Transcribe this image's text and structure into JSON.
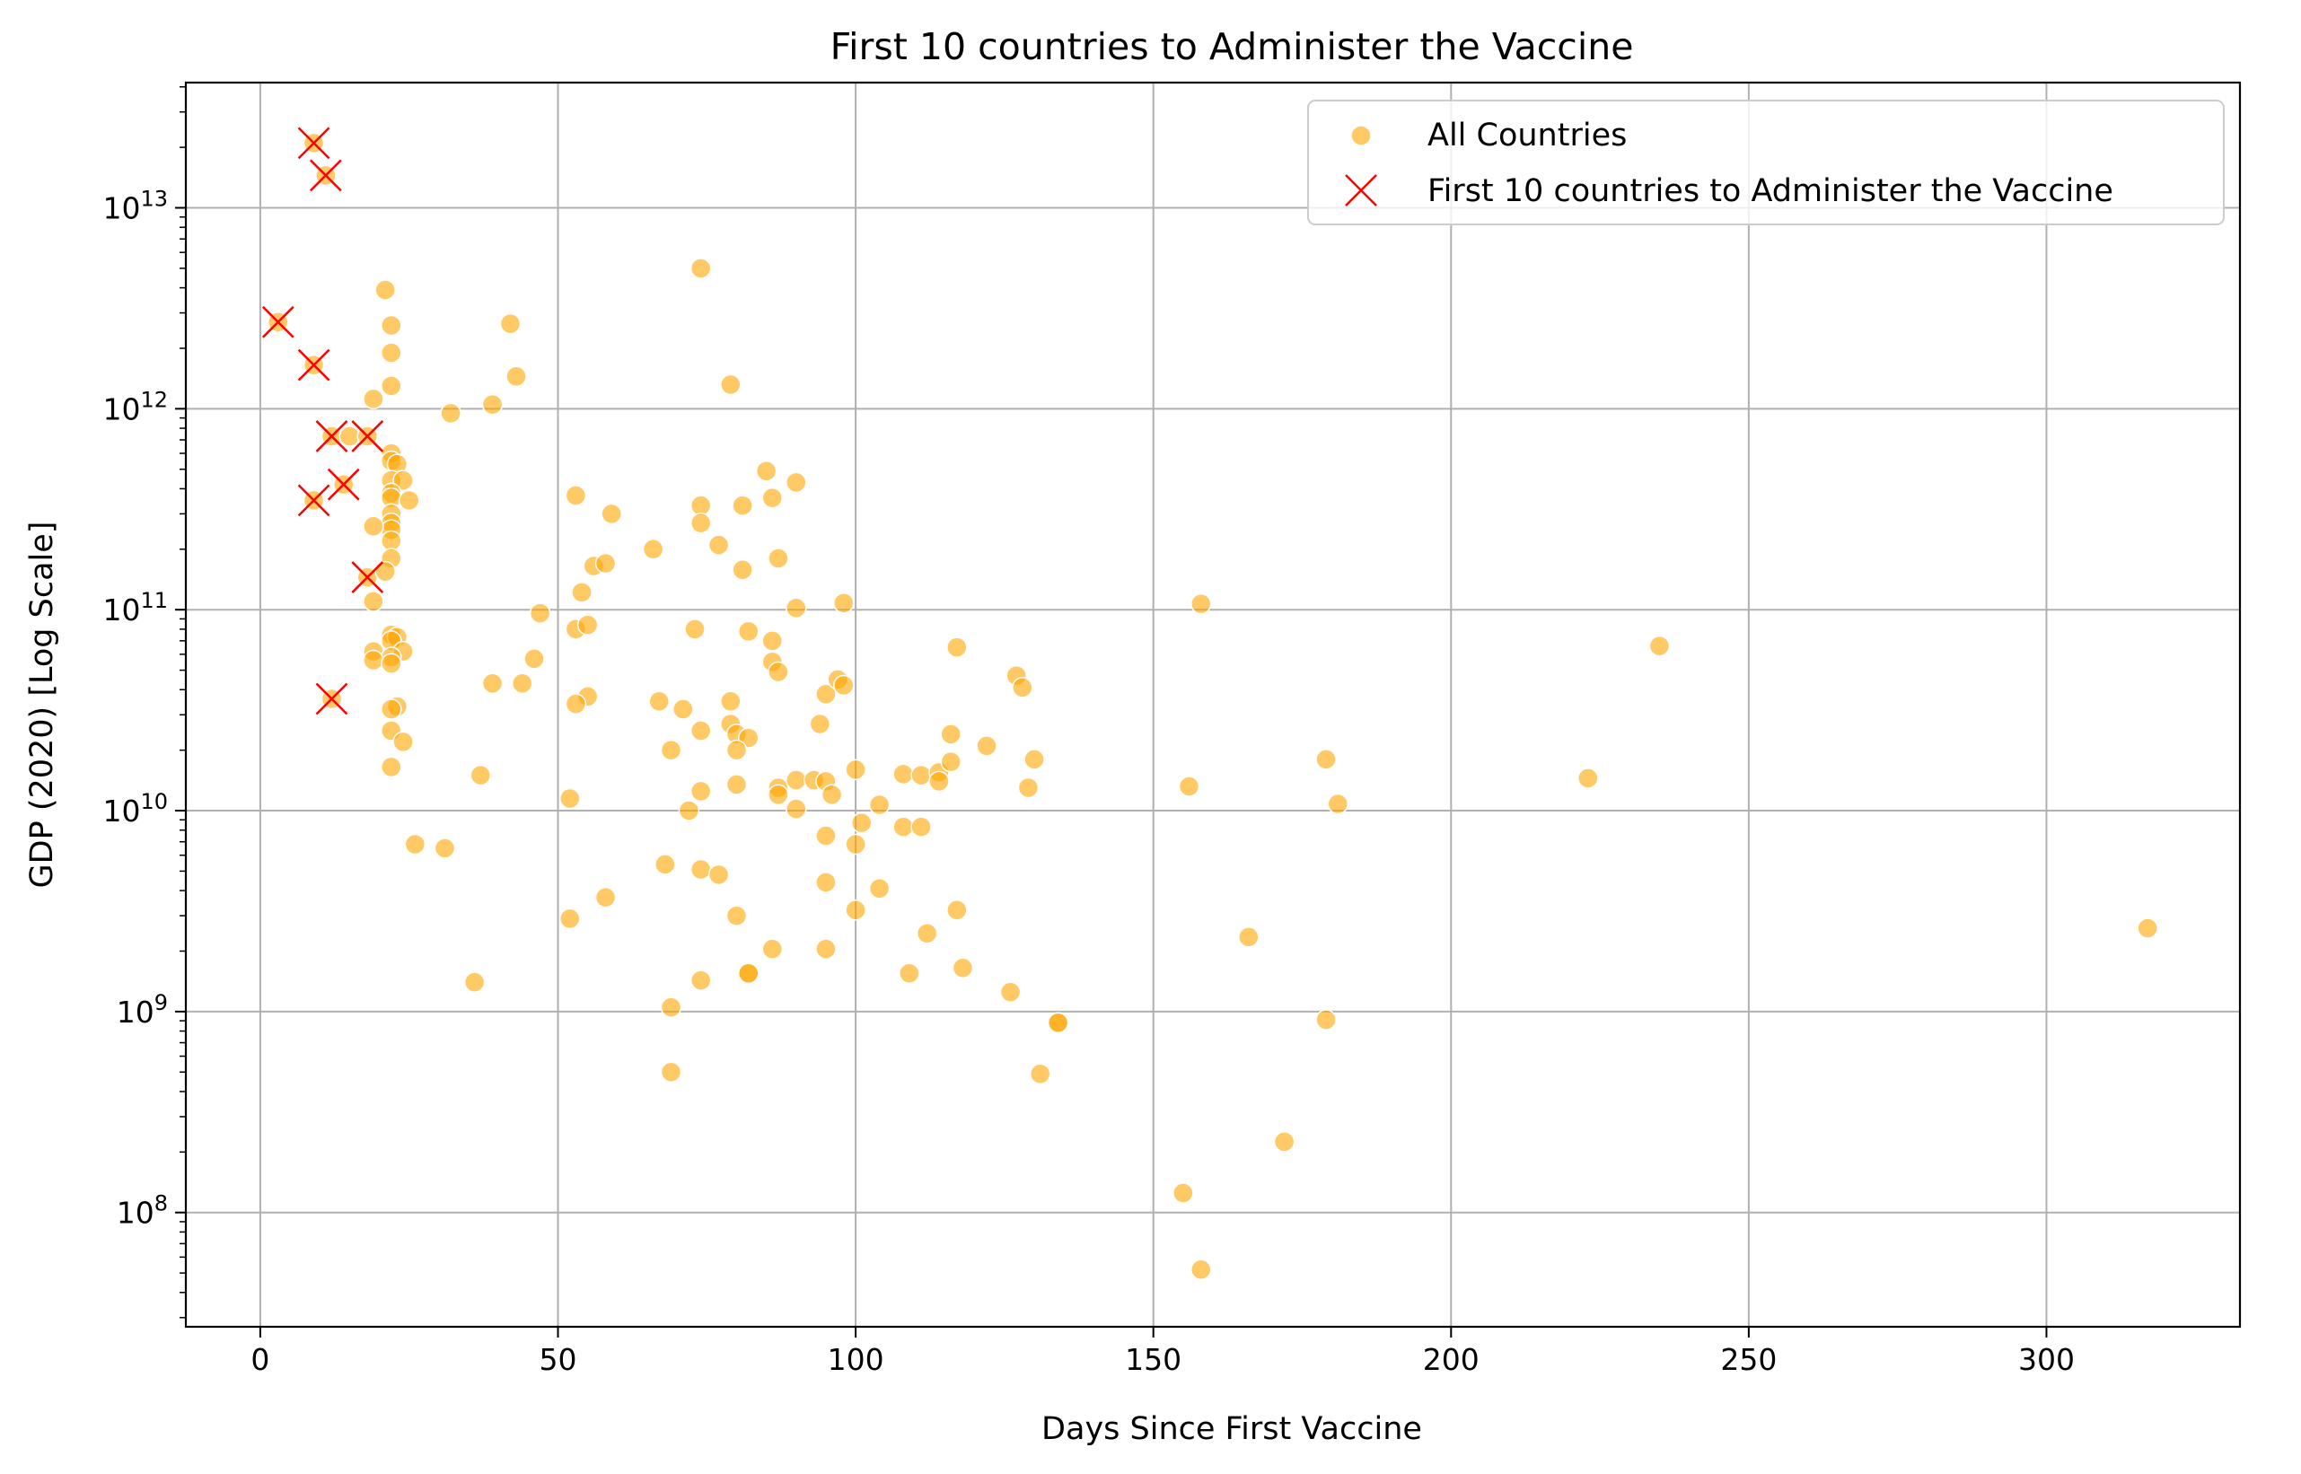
{
  "chart_data": {
    "type": "scatter",
    "title": "First 10 countries to Administer the Vaccine",
    "xlabel": "Days Since First Vaccine",
    "ylabel": "GDP (2020) [Log Scale]",
    "xlim": [
      -12.5,
      332.5
    ],
    "ylim": [
      27000000.0,
      42000000000000.0
    ],
    "yscale": "log",
    "grid": true,
    "legend_position": "top-right",
    "x_ticks": [
      0,
      50,
      100,
      150,
      200,
      250,
      300
    ],
    "y_ticks": [
      {
        "value": 100000000.0,
        "base": "10",
        "exp": "8"
      },
      {
        "value": 1000000000.0,
        "base": "10",
        "exp": "9"
      },
      {
        "value": 10000000000.0,
        "base": "10",
        "exp": "10"
      },
      {
        "value": 100000000000.0,
        "base": "10",
        "exp": "11"
      },
      {
        "value": 1000000000000.0,
        "base": "10",
        "exp": "12"
      },
      {
        "value": 10000000000000.0,
        "base": "10",
        "exp": "13"
      }
    ],
    "colors": {
      "all_countries": "#FFA500",
      "first_10": "#FF0000",
      "grid": "#b0b0b0"
    },
    "series": [
      {
        "name": "All Countries",
        "marker": "circle",
        "points": [
          [
            9,
            21000000000000.0
          ],
          [
            11,
            14500000000000.0
          ],
          [
            3,
            2700000000000.0
          ],
          [
            9,
            1650000000000.0
          ],
          [
            12,
            730000000000.0
          ],
          [
            15,
            730000000000.0
          ],
          [
            18,
            730000000000.0
          ],
          [
            9,
            350000000000.0
          ],
          [
            14,
            420000000000.0
          ],
          [
            18,
            145000000000.0
          ],
          [
            12,
            36000000000.0
          ],
          [
            21,
            3900000000000.0
          ],
          [
            22,
            2600000000000.0
          ],
          [
            22,
            1900000000000.0
          ],
          [
            22,
            1300000000000.0
          ],
          [
            19,
            1120000000000.0
          ],
          [
            22,
            600000000000.0
          ],
          [
            22,
            550000000000.0
          ],
          [
            23,
            530000000000.0
          ],
          [
            22,
            440000000000.0
          ],
          [
            24,
            440000000000.0
          ],
          [
            22,
            380000000000.0
          ],
          [
            22,
            360000000000.0
          ],
          [
            25,
            350000000000.0
          ],
          [
            22,
            300000000000.0
          ],
          [
            22,
            270000000000.0
          ],
          [
            22,
            250000000000.0
          ],
          [
            19,
            260000000000.0
          ],
          [
            22,
            220000000000.0
          ],
          [
            22,
            180000000000.0
          ],
          [
            21,
            155000000000.0
          ],
          [
            19,
            110000000000.0
          ],
          [
            22,
            75000000000.0
          ],
          [
            23,
            73000000000.0
          ],
          [
            22,
            70000000000.0
          ],
          [
            24,
            62000000000.0
          ],
          [
            19,
            62000000000.0
          ],
          [
            22,
            58000000000.0
          ],
          [
            19,
            56000000000.0
          ],
          [
            22,
            54000000000.0
          ],
          [
            23,
            33000000000.0
          ],
          [
            22,
            32000000000.0
          ],
          [
            22,
            25000000000.0
          ],
          [
            24,
            22000000000.0
          ],
          [
            22,
            16500000000.0
          ],
          [
            26,
            6800000000.0
          ],
          [
            31,
            6500000000.0
          ],
          [
            32,
            950000000000.0
          ],
          [
            39,
            1050000000000.0
          ],
          [
            42,
            2650000000000.0
          ],
          [
            43,
            1450000000000.0
          ],
          [
            37,
            15000000000.0
          ],
          [
            36,
            1400000000.0
          ],
          [
            39,
            43000000000.0
          ],
          [
            44,
            43000000000.0
          ],
          [
            46,
            57000000000.0
          ],
          [
            47,
            96000000000.0
          ],
          [
            53,
            370000000000.0
          ],
          [
            59,
            300000000000.0
          ],
          [
            56,
            165000000000.0
          ],
          [
            58,
            170000000000.0
          ],
          [
            54,
            122000000000.0
          ],
          [
            53,
            80000000000.0
          ],
          [
            55,
            84000000000.0
          ],
          [
            55,
            37000000000.0
          ],
          [
            53,
            34000000000.0
          ],
          [
            52,
            11500000000.0
          ],
          [
            52,
            2900000000.0
          ],
          [
            58,
            3700000000.0
          ],
          [
            66,
            200000000000.0
          ],
          [
            67,
            35000000000.0
          ],
          [
            69,
            20000000000.0
          ],
          [
            71,
            32000000000.0
          ],
          [
            72,
            10000000000.0
          ],
          [
            68,
            5400000000.0
          ],
          [
            69,
            1050000000.0
          ],
          [
            69,
            500000000.0
          ],
          [
            74,
            5000000000000.0
          ],
          [
            79,
            1320000000000.0
          ],
          [
            74,
            330000000000.0
          ],
          [
            74,
            270000000000.0
          ],
          [
            77,
            210000000000.0
          ],
          [
            81,
            330000000000.0
          ],
          [
            81,
            158000000000.0
          ],
          [
            73,
            80000000000.0
          ],
          [
            82,
            78000000000.0
          ],
          [
            74,
            25000000000.0
          ],
          [
            79,
            35000000000.0
          ],
          [
            79,
            27000000000.0
          ],
          [
            80,
            24000000000.0
          ],
          [
            82,
            23000000000.0
          ],
          [
            80,
            20000000000.0
          ],
          [
            74,
            12500000000.0
          ],
          [
            80,
            13500000000.0
          ],
          [
            74,
            5100000000.0
          ],
          [
            77,
            4800000000.0
          ],
          [
            80,
            3000000000.0
          ],
          [
            74,
            1430000000.0
          ],
          [
            82,
            1550000000.0
          ],
          [
            82,
            1550000000.0
          ],
          [
            85,
            490000000000.0
          ],
          [
            86,
            360000000000.0
          ],
          [
            90,
            430000000000.0
          ],
          [
            87,
            180000000000.0
          ],
          [
            90,
            102000000000.0
          ],
          [
            98,
            108000000000.0
          ],
          [
            86,
            70000000000.0
          ],
          [
            86,
            55000000000.0
          ],
          [
            87,
            49000000000.0
          ],
          [
            94,
            27000000000.0
          ],
          [
            95,
            38000000000.0
          ],
          [
            97,
            45000000000.0
          ],
          [
            98,
            42000000000.0
          ],
          [
            87,
            13000000000.0
          ],
          [
            87,
            12000000000.0
          ],
          [
            90,
            14200000000.0
          ],
          [
            93,
            14200000000.0
          ],
          [
            95,
            14000000000.0
          ],
          [
            96,
            12000000000.0
          ],
          [
            90,
            10200000000.0
          ],
          [
            95,
            7500000000.0
          ],
          [
            101,
            8700000000.0
          ],
          [
            100,
            6800000000.0
          ],
          [
            95,
            4400000000.0
          ],
          [
            100,
            3200000000.0
          ],
          [
            86,
            2050000000.0
          ],
          [
            95,
            2050000000.0
          ],
          [
            100,
            16000000000.0
          ],
          [
            104,
            10700000000.0
          ],
          [
            104,
            4100000000.0
          ],
          [
            108,
            15200000000.0
          ],
          [
            111,
            15000000000.0
          ],
          [
            114,
            15500000000.0
          ],
          [
            114,
            14000000000.0
          ],
          [
            116,
            17500000000.0
          ],
          [
            108,
            8300000000.0
          ],
          [
            111,
            8300000000.0
          ],
          [
            116,
            24000000000.0
          ],
          [
            117,
            65000000000.0
          ],
          [
            112,
            2450000000.0
          ],
          [
            117,
            3200000000.0
          ],
          [
            109,
            1550000000.0
          ],
          [
            118,
            1650000000.0
          ],
          [
            122,
            21000000000.0
          ],
          [
            127,
            47000000000.0
          ],
          [
            128,
            41000000000.0
          ],
          [
            130,
            18000000000.0
          ],
          [
            129,
            13000000000.0
          ],
          [
            126,
            1250000000.0
          ],
          [
            131,
            490000000.0
          ],
          [
            134,
            880000000.0
          ],
          [
            134,
            880000000.0
          ],
          [
            158,
            107000000000.0
          ],
          [
            156,
            13200000000.0
          ],
          [
            166,
            2350000000.0
          ],
          [
            155,
            125000000.0
          ],
          [
            158,
            52000000.0
          ],
          [
            172,
            225000000.0
          ],
          [
            179,
            18000000000.0
          ],
          [
            181,
            10800000000.0
          ],
          [
            179,
            910000000.0
          ],
          [
            223,
            14500000000.0
          ],
          [
            235,
            66000000000.0
          ],
          [
            317,
            2600000000.0
          ]
        ]
      },
      {
        "name": "First 10 countries to Administer the Vaccine",
        "marker": "x",
        "points": [
          [
            9,
            21000000000000.0
          ],
          [
            11,
            14500000000000.0
          ],
          [
            3,
            2700000000000.0
          ],
          [
            9,
            1650000000000.0
          ],
          [
            12,
            730000000000.0
          ],
          [
            18,
            730000000000.0
          ],
          [
            9,
            350000000000.0
          ],
          [
            14,
            420000000000.0
          ],
          [
            18,
            145000000000.0
          ],
          [
            12,
            36000000000.0
          ]
        ]
      }
    ]
  }
}
